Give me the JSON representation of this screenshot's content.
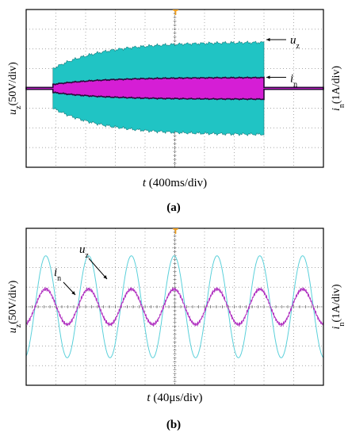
{
  "chart_data": [
    {
      "panel": "(a)",
      "type": "line",
      "xlabel": {
        "sym": "t",
        "unit": " (400ms/div)"
      },
      "ylabel_left": {
        "sym": "u",
        "sub": "z",
        "unit": "(50V/div)"
      },
      "ylabel_right": {
        "sym": "i",
        "sub": "n",
        "unit": "(1A/div)"
      },
      "annotations": [
        {
          "sym": "u",
          "sub": "z",
          "series": "uz"
        },
        {
          "sym": "i",
          "sub": "n",
          "series": "in"
        }
      ],
      "grid": true,
      "divisions": {
        "x": 10,
        "y": 8
      },
      "series": [
        {
          "id": "uz",
          "color": "#20c4c4",
          "off_amp_div": 0.05,
          "start_div": 0.9,
          "settled_div": 10.3,
          "env_start_amp_div": 1.0,
          "env_peak_amp_div": 2.35,
          "end_div": 8.0
        },
        {
          "id": "in",
          "color": "#d51ed5",
          "off_amp_div": 0.05,
          "start_div": 0.9,
          "env_start_amp_div": 0.2,
          "env_peak_amp_div": 0.55,
          "end_div": 8.0
        }
      ]
    },
    {
      "panel": "(b)",
      "type": "line",
      "xlabel": {
        "sym": "t",
        "unit": " (40μs/div)"
      },
      "ylabel_left": {
        "sym": "u",
        "sub": "z",
        "unit": "(50V/div)"
      },
      "ylabel_right": {
        "sym": "i",
        "sub": "n",
        "unit": "(1A/div)"
      },
      "annotations": [
        {
          "sym": "u",
          "sub": "z",
          "series": "uz"
        },
        {
          "sym": "i",
          "sub": "n",
          "series": "in"
        }
      ],
      "grid": true,
      "divisions": {
        "x": 10,
        "y": 8
      },
      "series": [
        {
          "id": "uz",
          "color": "#5ad0da",
          "amplitude_div": 2.6,
          "period_div": 1.44,
          "phase_div": 0.3
        },
        {
          "id": "in",
          "color": "#b030c0",
          "amplitude_div": 0.9,
          "period_div": 1.44,
          "phase_div": 0.3
        }
      ]
    }
  ],
  "colors": {
    "grid_dot": "#8a8a8a",
    "frame": "#000000",
    "trigger_marker": "#f0a020",
    "arrow": "#000000"
  }
}
